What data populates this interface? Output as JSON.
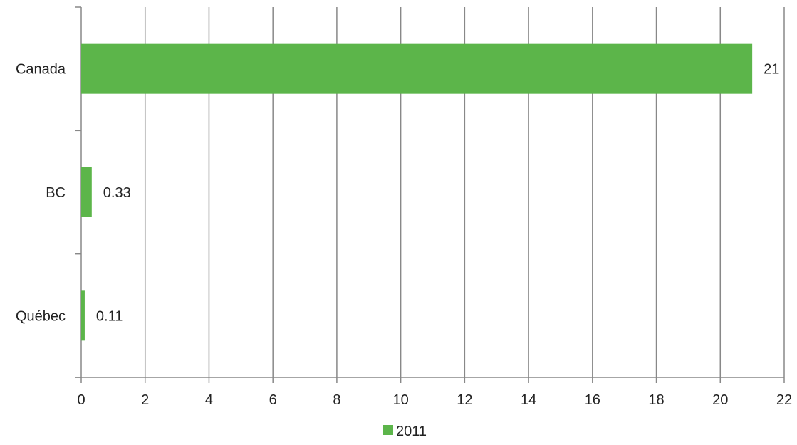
{
  "chart_data": {
    "type": "bar",
    "orientation": "horizontal",
    "categories": [
      "Canada",
      "BC",
      "Québec"
    ],
    "series": [
      {
        "name": "2011",
        "values": [
          21,
          0.33,
          0.11
        ],
        "data_labels": [
          "21",
          "0.33",
          "0.11"
        ]
      }
    ],
    "x_ticks": [
      "0",
      "2",
      "4",
      "6",
      "8",
      "10",
      "12",
      "14",
      "16",
      "18",
      "20",
      "22"
    ],
    "xlim": [
      0,
      22
    ],
    "grid": true,
    "legend_position": "bottom",
    "colors": {
      "bar": "#5cb54a",
      "grid": "#888888",
      "axis": "#888888",
      "text": "#222222"
    }
  }
}
